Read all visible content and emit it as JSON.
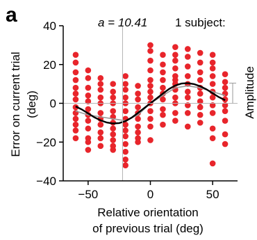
{
  "chart_data": {
    "type": "scatter",
    "panel_letter": "a",
    "annotation_a": "a = 10.41",
    "annotation_subject": "1 subject:",
    "right_label": "Amplitude",
    "xlabel_line1": "Relative orientation",
    "xlabel_line2": "of previous trial (deg)",
    "ylabel_line1": "Error on current trial",
    "ylabel_line2": "(deg)",
    "xlim": [
      -70,
      70
    ],
    "ylim": [
      -40,
      40
    ],
    "x_ticks": [
      -50,
      0,
      50
    ],
    "x_tick_labels": [
      "−50",
      "0",
      "50"
    ],
    "y_ticks": [
      -40,
      -20,
      0,
      20,
      40
    ],
    "y_tick_labels": [
      "−40",
      "−20",
      "0",
      "20",
      "40"
    ],
    "point_color": "#e8252b",
    "fit_color": "#000000",
    "smooth_color": "#9a9a9a",
    "amplitude": 10.41,
    "points": {
      "xs": [
        -60,
        -50,
        -40,
        -30,
        -20,
        -10,
        0,
        10,
        20,
        30,
        40,
        50,
        60
      ],
      "ys": [
        [
          25,
          21,
          16,
          12,
          8,
          5,
          2,
          -2,
          -5,
          -8,
          -11,
          -14,
          -18
        ],
        [
          17,
          13,
          8,
          4,
          1,
          -3,
          -6,
          -9,
          -13,
          -18,
          -20,
          -24
        ],
        [
          13,
          10,
          7,
          3,
          0,
          -5,
          -8,
          -11,
          -15,
          -18,
          -22
        ],
        [
          10,
          6,
          3,
          0,
          -4,
          -7,
          -10,
          -13,
          -16,
          -19,
          -22,
          -24
        ],
        [
          14,
          10,
          7,
          3,
          0,
          -4,
          -8,
          -11,
          -14,
          -17,
          -21,
          -25,
          -29,
          -32
        ],
        [
          9,
          5,
          2,
          -2,
          -5,
          -8,
          -12,
          -15,
          -18,
          -20
        ],
        [
          30,
          27,
          22,
          17,
          12,
          9,
          6,
          3,
          0,
          -4,
          -8,
          -12,
          -19
        ],
        [
          25,
          20,
          16,
          12,
          8,
          5,
          2,
          -3,
          -6,
          -11
        ],
        [
          29,
          25,
          22,
          18,
          14,
          12,
          10,
          7,
          3,
          0,
          -5,
          -9
        ],
        [
          28,
          24,
          19,
          14,
          10,
          6,
          3,
          -1,
          -5,
          -12
        ],
        [
          26,
          21,
          16,
          12,
          8,
          5,
          1,
          -2,
          -6,
          -10
        ],
        [
          25,
          21,
          18,
          14,
          10,
          6,
          3,
          -1,
          -5,
          -13,
          -18,
          -31
        ],
        [
          15,
          11,
          8,
          5,
          2,
          -1,
          -4,
          -9,
          -16,
          -21
        ]
      ]
    },
    "fit_curve": {
      "x": [
        -60,
        -55,
        -50,
        -45,
        -40,
        -35,
        -30,
        -25,
        -20,
        -15,
        -10,
        -5,
        0,
        5,
        10,
        15,
        20,
        25,
        30,
        35,
        40,
        45,
        50,
        55,
        60
      ],
      "y": [
        -1.6,
        -3.2,
        -5.2,
        -7.2,
        -8.8,
        -9.9,
        -10.4,
        -10.2,
        -9.2,
        -7.4,
        -5.0,
        -2.5,
        0,
        2.5,
        5.0,
        7.4,
        9.2,
        10.2,
        10.4,
        9.9,
        8.8,
        7.2,
        5.2,
        3.2,
        1.6
      ]
    },
    "smooth_curve": {
      "x": [
        -60,
        -50,
        -40,
        -30,
        -20,
        -10,
        0,
        10,
        20,
        30,
        40,
        50,
        60
      ],
      "y": [
        -4,
        -6,
        -7,
        -8,
        -9,
        -6,
        0,
        4,
        8,
        9,
        8,
        6,
        4
      ]
    }
  }
}
